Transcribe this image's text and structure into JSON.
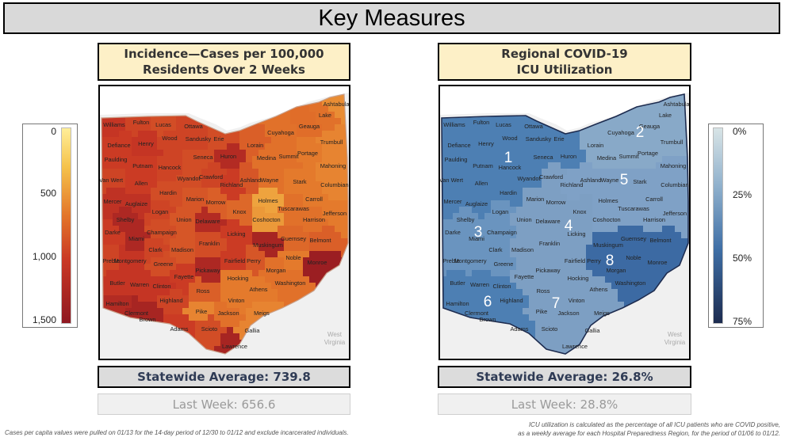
{
  "page": {
    "title": "Key Measures"
  },
  "incidence": {
    "header_line1": "Incidence—Cases per 100,000",
    "header_line2": "Residents Over 2 Weeks",
    "statewide_average": "Statewide Average: 739.8",
    "last_week": "Last Week: 656.6",
    "legend": {
      "labels": [
        "0",
        "500",
        "1,000",
        "1,500"
      ],
      "scale_min": 0,
      "scale_max": 1500,
      "colors": [
        "#ffee99",
        "#f5c24b",
        "#e3752a",
        "#c93724",
        "#8f1821"
      ]
    },
    "footnote": "Cases per capita values were pulled on 01/13 for the 14-day period of 12/30 to 01/12 and exclude incarcerated individuals."
  },
  "icu": {
    "header_line1": "Regional COVID-19",
    "header_line2": "ICU Utilization",
    "statewide_average": "Statewide Average: 26.8%",
    "last_week": "Last Week: 28.8%",
    "legend": {
      "labels": [
        "0%",
        "25%",
        "50%",
        "75%"
      ],
      "scale_min": 0,
      "scale_max": 75,
      "colors": [
        "#d8e4e6",
        "#8fb0cc",
        "#3f6fa6",
        "#1c2b4f"
      ]
    },
    "regions": [
      "1",
      "2",
      "3",
      "4",
      "5",
      "6",
      "7",
      "8"
    ],
    "footnote_line1": "ICU utilization is calculated as the percentage of all ICU patients who are COVID positive,",
    "footnote_line2": "as a weekly average for each Hospital Preparedness Region, for the period of 01/06 to 01/12."
  },
  "map": {
    "neighbor_label_line1": "West",
    "neighbor_label_line2": "Virginia",
    "counties": [
      "Williams",
      "Fulton",
      "Lucas",
      "Ottawa",
      "Lake",
      "Ashtabula",
      "Defiance",
      "Henry",
      "Wood",
      "Sandusky",
      "Erie",
      "Cuyahoga",
      "Geauga",
      "Paulding",
      "Putnam",
      "Hancock",
      "Seneca",
      "Huron",
      "Lorain",
      "Medina",
      "Summit",
      "Portage",
      "Trumbull",
      "Van Wert",
      "Allen",
      "Wyandot",
      "Crawford",
      "Richland",
      "Ashland",
      "Wayne",
      "Stark",
      "Mahoning",
      "Mercer",
      "Auglaize",
      "Hardin",
      "Marion",
      "Morrow",
      "Holmes",
      "Carroll",
      "Columbiana",
      "Shelby",
      "Logan",
      "Union",
      "Delaware",
      "Knox",
      "Coshocton",
      "Tuscarawas",
      "Harrison",
      "Jefferson",
      "Darke",
      "Champaign",
      "Miami",
      "Licking",
      "Muskingum",
      "Guernsey",
      "Belmont",
      "Clark",
      "Madison",
      "Franklin",
      "Preble",
      "Montgomery",
      "Greene",
      "Fairfield",
      "Perry",
      "Morgan",
      "Noble",
      "Monroe",
      "Butler",
      "Warren",
      "Clinton",
      "Fayette",
      "Pickaway",
      "Hocking",
      "Athens",
      "Washington",
      "Hamilton",
      "Clermont",
      "Brown",
      "Highland",
      "Ross",
      "Vinton",
      "Meigs",
      "Adams",
      "Pike",
      "Scioto",
      "Jackson",
      "Gallia",
      "Lawrence"
    ]
  }
}
